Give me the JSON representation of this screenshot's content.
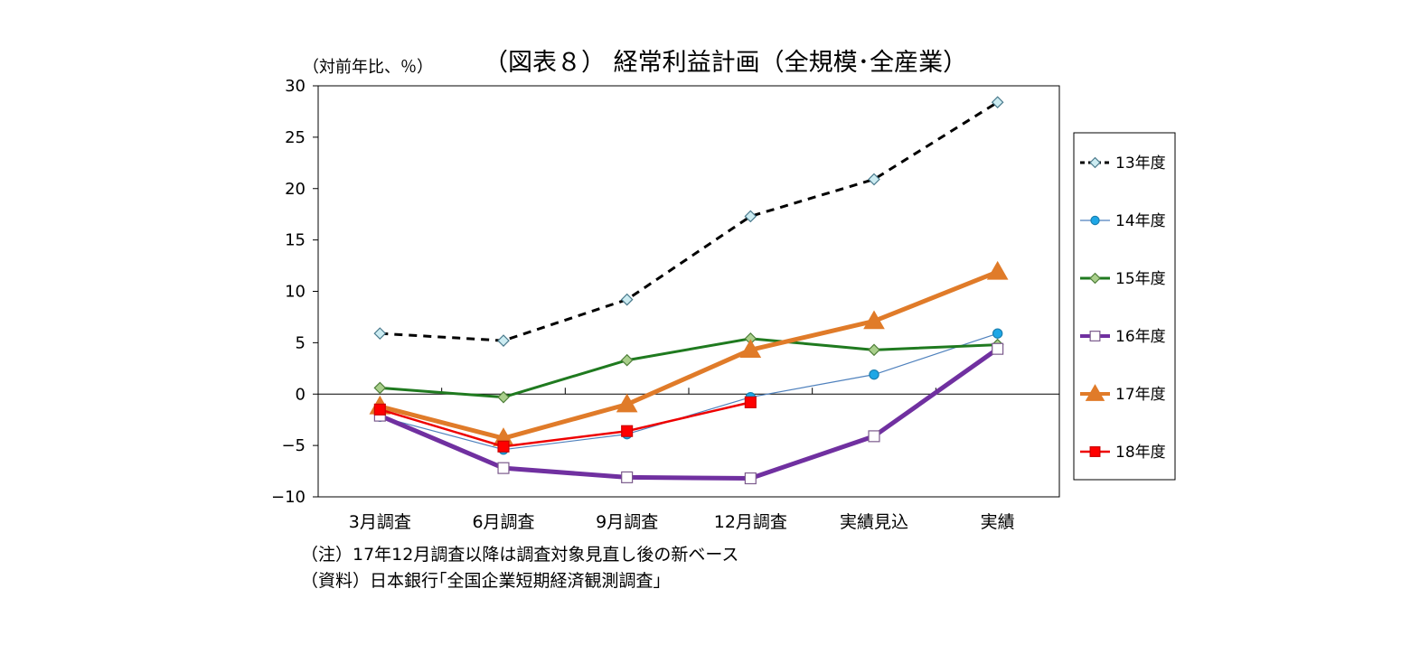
{
  "chart_data": {
    "type": "line",
    "title": "（図表８） 経常利益計画（全規模･全産業）",
    "unit_label": "（対前年比、％）",
    "categories": [
      "3月調査",
      "6月調査",
      "9月調査",
      "12月調査",
      "実績見込",
      "実績"
    ],
    "ylim": [
      -10,
      30
    ],
    "yticks": [
      30,
      25,
      20,
      15,
      10,
      5,
      0,
      -5,
      -10
    ],
    "yticks_labels": [
      "30",
      "25",
      "20",
      "15",
      "10",
      "5",
      "0",
      "−5",
      "−10"
    ],
    "grid": false,
    "legend_position": "right",
    "series": [
      {
        "name": "13年度",
        "color": "#000000",
        "dash": true,
        "width": 3,
        "marker": "diamond",
        "marker_fill": "#ccecf2",
        "marker_stroke": "#4a7a8c",
        "values": [
          5.9,
          5.2,
          9.2,
          17.3,
          20.9,
          28.4
        ]
      },
      {
        "name": "14年度",
        "color": "#4f81bd",
        "dash": false,
        "width": 1.2,
        "marker": "circle",
        "marker_fill": "#1ea7e6",
        "marker_stroke": "#1a7fb0",
        "values": [
          -2.2,
          -5.4,
          -3.9,
          -0.3,
          1.9,
          5.9
        ]
      },
      {
        "name": "15年度",
        "color": "#1f7a1f",
        "dash": false,
        "width": 3,
        "marker": "diamond",
        "marker_fill": "#a9cf8b",
        "marker_stroke": "#4f7f3a",
        "values": [
          0.6,
          -0.3,
          3.3,
          5.4,
          4.3,
          4.8
        ]
      },
      {
        "name": "16年度",
        "color": "#7030a0",
        "dash": false,
        "width": 5,
        "marker": "square",
        "marker_fill": "#ffffff",
        "marker_stroke": "#7b5a8c",
        "values": [
          -2.1,
          -7.2,
          -8.1,
          -8.2,
          -4.1,
          4.4
        ]
      },
      {
        "name": "17年度",
        "color": "#e07b29",
        "dash": false,
        "width": 5,
        "marker": "triangle",
        "marker_fill": "#e07b29",
        "marker_stroke": "#e07b29",
        "values": [
          -1.2,
          -4.3,
          -1.0,
          4.3,
          7.1,
          11.9
        ]
      },
      {
        "name": "18年度",
        "color": "#ee0000",
        "dash": false,
        "width": 2.5,
        "marker": "square",
        "marker_fill": "#ff0000",
        "marker_stroke": "#cc0000",
        "values": [
          -1.5,
          -5.1,
          -3.6,
          -0.8,
          null,
          null
        ]
      }
    ]
  },
  "notes": [
    "（注）17年12月調査以降は調査対象見直し後の新ベース",
    "（資料）日本銀行｢全国企業短期経済観測調査｣"
  ]
}
